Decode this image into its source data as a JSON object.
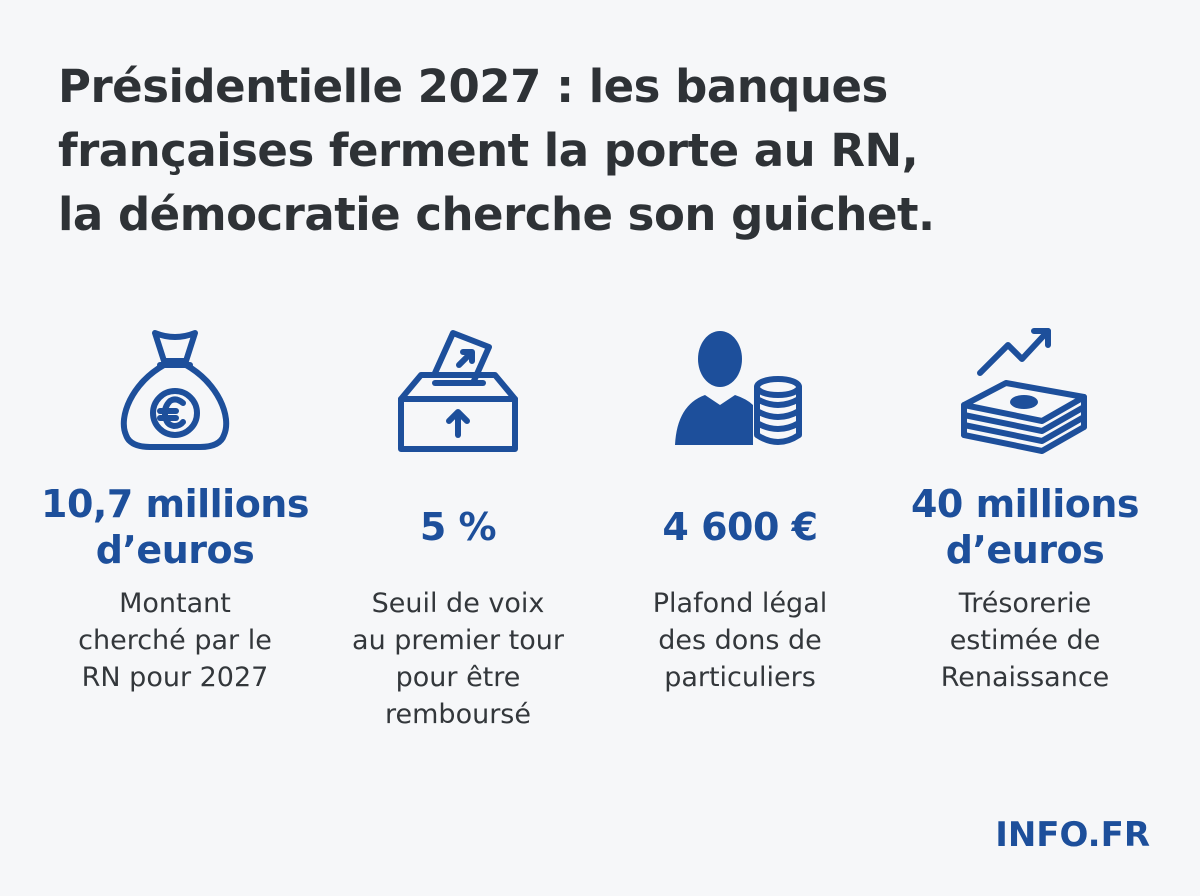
{
  "header": {
    "title": [
      "Présidentielle 2027 : les banques",
      "françaises ferment la porte au RN,",
      "la démocratie cherche son guichet."
    ]
  },
  "stats": [
    {
      "figure": [
        "10,7 millions",
        "d’euros"
      ],
      "caption": [
        "Montant",
        "cherché par le",
        "RN pour 2027"
      ]
    },
    {
      "figure": [
        "5 %"
      ],
      "caption": [
        "Seuil de voix",
        "au premier tour",
        "pour être",
        "remboursé"
      ]
    },
    {
      "figure": [
        "4 600 €"
      ],
      "caption": [
        "Plafond légal",
        "des dons de",
        "particuliers"
      ]
    },
    {
      "figure": [
        "40 millions",
        "d’euros"
      ],
      "caption": [
        "Trésorerie",
        "estimée de",
        "Renaissance"
      ]
    }
  ],
  "footer": {
    "logo": "INFO.FR"
  }
}
